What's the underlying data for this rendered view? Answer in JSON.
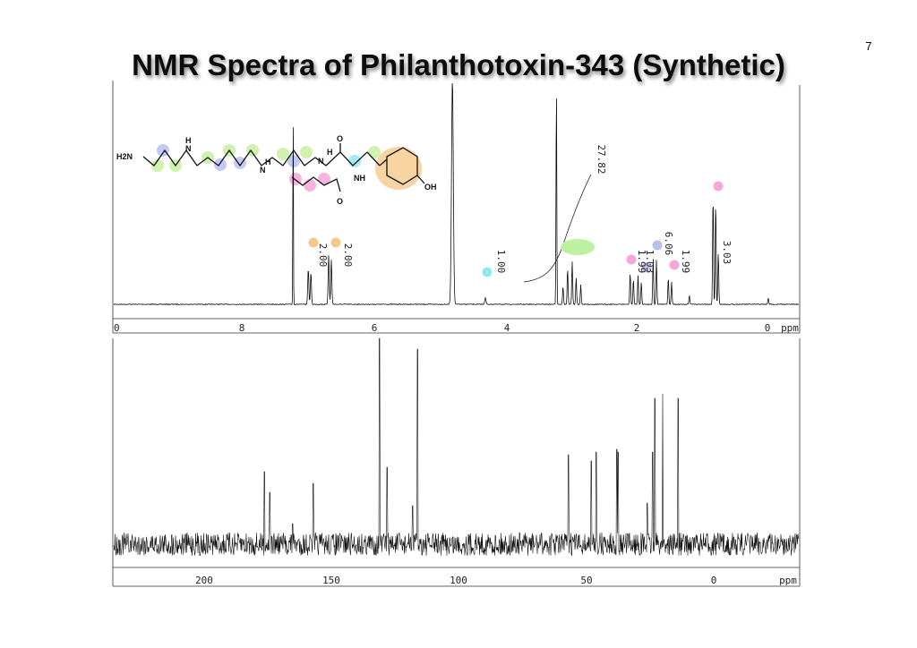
{
  "header": {
    "title": "NMR Spectra of Philanthotoxin-343 (Synthetic)",
    "page_number": "7"
  },
  "proton_spectrum": {
    "axis_labels": [
      "0",
      "8",
      "6",
      "4",
      "2",
      "0",
      "ppm"
    ],
    "integrals": [
      "2.00",
      "2.00",
      "1.00",
      "27.82",
      "1.99",
      "1.03",
      "6.06",
      "1.99",
      "3.03"
    ]
  },
  "carbon_spectrum": {
    "axis_labels": [
      "200",
      "150",
      "100",
      "50",
      "0",
      "ppm"
    ]
  },
  "structure": {
    "atom_labels": [
      "H2N",
      "H",
      "N",
      "N",
      "H",
      "N",
      "H",
      "O",
      "NH",
      "O",
      "OH"
    ]
  }
}
